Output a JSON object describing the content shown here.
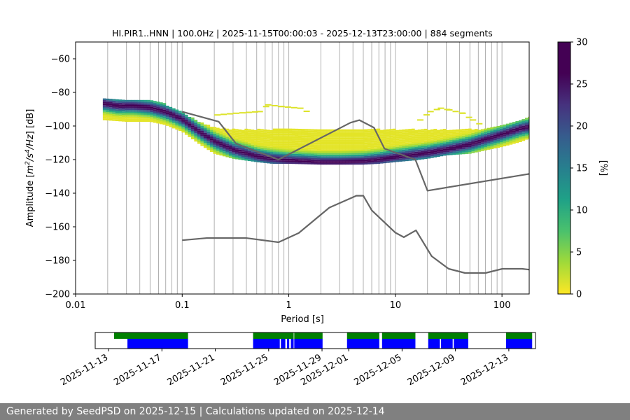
{
  "chart_data": [
    {
      "type": "heatmap",
      "title": "HI.PIR1..HNN | 100.0Hz | 2025-11-15T00:00:03 - 2025-12-13T23:00:00 | 884 segments",
      "xlabel": "Period [s]",
      "ylabel": "Amplitude [m²/s⁴/Hz] [dB]",
      "x_scale": "log",
      "xlim": [
        0.01,
        180
      ],
      "ylim": [
        -200,
        -50
      ],
      "x_ticks": [
        0.01,
        0.1,
        1,
        10,
        100
      ],
      "x_tick_labels": [
        "0.01",
        "0.1",
        "1",
        "10",
        "100"
      ],
      "y_ticks": [
        -200,
        -180,
        -160,
        -140,
        -120,
        -100,
        -80,
        -60
      ],
      "y_tick_labels": [
        "−200",
        "−180",
        "−160",
        "−140",
        "−120",
        "−100",
        "−80",
        "−60"
      ],
      "grid": "vertical-minor-and-major",
      "colorbar": {
        "label": "[%]",
        "range": [
          0,
          30
        ],
        "ticks": [
          0,
          5,
          10,
          15,
          20,
          25,
          30
        ],
        "tick_labels": [
          "0",
          "5",
          "10",
          "15",
          "20",
          "25",
          "30"
        ],
        "colormap": "viridis_r"
      },
      "mode_curve": {
        "period": [
          0.018,
          0.025,
          0.035,
          0.05,
          0.07,
          0.1,
          0.15,
          0.2,
          0.3,
          0.5,
          0.7,
          1,
          1.5,
          2,
          3,
          5,
          7,
          10,
          15,
          20,
          30,
          50,
          70,
          100,
          150,
          180
        ],
        "db": [
          -86.5,
          -88,
          -88,
          -89,
          -91.5,
          -96,
          -104,
          -109,
          -114,
          -118,
          -119.5,
          -120.5,
          -121,
          -121.5,
          -121.5,
          -121,
          -120,
          -118.5,
          -117,
          -116,
          -114,
          -111,
          -108,
          -105,
          -101.5,
          -100.5
        ]
      },
      "envelope_upper": {
        "period": [
          0.018,
          0.03,
          0.045,
          0.07,
          0.1,
          0.15,
          0.2,
          0.3,
          0.5,
          0.7,
          1,
          1.5,
          2,
          3,
          5,
          7,
          10,
          15,
          20,
          30,
          50,
          70,
          100,
          150,
          180
        ],
        "db": [
          -83,
          -85,
          -84,
          -87,
          -92,
          -98,
          -101,
          -102,
          -102,
          -102,
          -102,
          -102,
          -102,
          -102,
          -102,
          -102,
          -102,
          -102,
          -102,
          -102,
          -102,
          -102,
          -100,
          -97,
          -95
        ]
      },
      "envelope_lower": {
        "period": [
          0.018,
          0.03,
          0.05,
          0.07,
          0.1,
          0.15,
          0.2,
          0.3,
          0.5,
          0.7,
          1,
          2,
          3,
          5,
          7,
          10,
          15,
          20,
          30,
          50,
          70,
          100,
          150,
          180
        ],
        "db": [
          -96,
          -97,
          -97,
          -99,
          -103,
          -111,
          -116,
          -119,
          -121,
          -122,
          -122,
          -122.5,
          -122.5,
          -122.5,
          -122,
          -121,
          -120,
          -119,
          -117,
          -116,
          -114,
          -112,
          -109,
          -107
        ]
      },
      "sparse_blobs": [
        {
          "period": [
            0.2,
            0.3,
            0.5,
            0.6,
            0.8,
            1.2,
            1.5
          ],
          "db": [
            -93,
            -92,
            -91,
            -87,
            -88,
            -89,
            -92
          ]
        },
        {
          "period": [
            16,
            20,
            25,
            30,
            40,
            50,
            60
          ],
          "db": [
            -96,
            -91,
            -89,
            -90,
            -92,
            -96,
            -99
          ]
        }
      ],
      "reference_curves": [
        {
          "period": [
            0.1,
            0.17,
            0.4,
            0.8,
            1.24,
            2.4,
            4.3,
            5,
            6,
            10,
            12,
            15.6,
            21.9,
            31.6,
            45,
            70,
            101,
            154,
            180
          ],
          "db": [
            -168.0,
            -166.7,
            -166.7,
            -169.2,
            -163.7,
            -148.6,
            -141.5,
            -141.5,
            -150.2,
            -163.5,
            -166.2,
            -162.1,
            -177.5,
            -185.0,
            -187.5,
            -187.5,
            -185.0,
            -185.0,
            -185.5
          ]
        },
        {
          "period": [
            0.1,
            0.22,
            0.32,
            0.8,
            3.8,
            4.6,
            6.3,
            7.9,
            15.4,
            20,
            180
          ],
          "db": [
            -91.5,
            -97.4,
            -110.5,
            -120.0,
            -98.0,
            -96.5,
            -101.0,
            -113.5,
            -120.0,
            -138.5,
            -128.5
          ]
        }
      ]
    },
    {
      "type": "timeline",
      "x_type": "date",
      "xlim": [
        "2025-11-12",
        "2025-12-15"
      ],
      "x_ticks": [
        "2025-11-13",
        "2025-11-17",
        "2025-11-21",
        "2025-11-25",
        "2025-11-29",
        "2025-12-01",
        "2025-12-05",
        "2025-12-09",
        "2025-12-13"
      ],
      "x_tick_labels": [
        "2025-11-13",
        "2025-11-17",
        "2025-11-21",
        "2025-11-25",
        "2025-11-29",
        "2025-12-01",
        "2025-12-05",
        "2025-12-09",
        "2025-12-13"
      ],
      "green_segments": [
        [
          "2025-11-13T10:00",
          "2025-11-18T23:00"
        ],
        [
          "2025-11-23T20:00",
          "2025-11-26T21:00"
        ],
        [
          "2025-11-26T22:00",
          "2025-11-29T01:00"
        ],
        [
          "2025-11-30T21:00",
          "2025-12-03T07:00"
        ],
        [
          "2025-12-03T12:00",
          "2025-12-06T00:00"
        ],
        [
          "2025-12-06T23:00",
          "2025-12-09T23:00"
        ],
        [
          "2025-12-12T19:00",
          "2025-12-14T18:00"
        ]
      ],
      "blue_segments": [
        [
          "2025-11-14T10:00",
          "2025-11-18T23:00"
        ],
        [
          "2025-11-23T20:00",
          "2025-11-25T20:00"
        ],
        [
          "2025-11-25T22:00",
          "2025-11-26T06:00"
        ],
        [
          "2025-11-26T09:00",
          "2025-11-26T13:00"
        ],
        [
          "2025-11-26T16:00",
          "2025-11-26T21:00"
        ],
        [
          "2025-11-26T22:00",
          "2025-11-29T01:00"
        ],
        [
          "2025-11-30T21:00",
          "2025-12-03T07:00"
        ],
        [
          "2025-12-03T12:00",
          "2025-12-06T00:00"
        ],
        [
          "2025-12-06T23:00",
          "2025-12-07T20:00"
        ],
        [
          "2025-12-07T22:00",
          "2025-12-08T19:00"
        ],
        [
          "2025-12-08T21:00",
          "2025-12-09T23:00"
        ],
        [
          "2025-12-12T19:00",
          "2025-12-14T18:00"
        ]
      ]
    }
  ],
  "footer": {
    "text": "Generated by SeedPSD on 2025-12-15 | Calculations updated on 2025-12-14"
  },
  "colors": {
    "reference_curve": "#666666",
    "grid": "#b0b0b0",
    "timeline_green": "#008000",
    "timeline_blue": "#0000ff",
    "footer_bg": "#808080"
  }
}
